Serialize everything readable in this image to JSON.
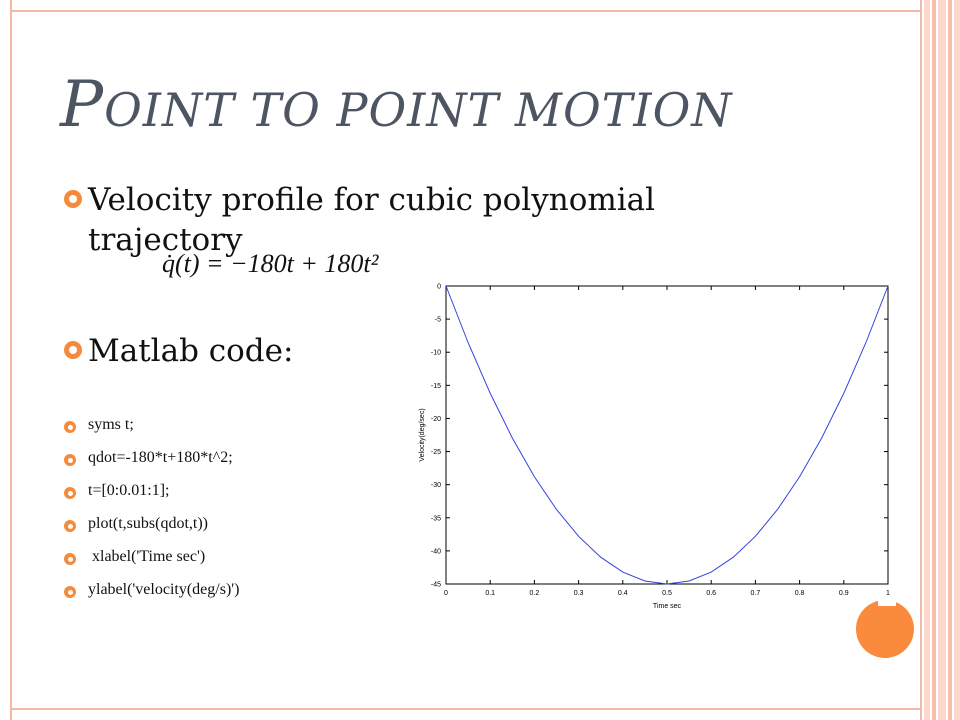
{
  "title": {
    "first_letter": "P",
    "rest": "oint to point motion"
  },
  "bullets": [
    {
      "text": "Velocity profile for cubic polynomial trajectory"
    },
    {
      "text": "Matlab code:"
    }
  ],
  "equation": {
    "lhs": "q̇(t) = ",
    "rhs": "−180t + 180t²"
  },
  "code_lines": [
    "syms t;",
    "qdot=-180*t+180*t^2;",
    "t=[0:0.01:1];",
    "plot(t,subs(qdot,t))",
    " xlabel('Time sec')",
    "ylabel('velocity(deg/s)')"
  ],
  "colors": {
    "accent": "#f58a3c",
    "title": "#4d5562",
    "frame": "#f4b8a8",
    "line": "#3344dd"
  },
  "chart_data": {
    "type": "line",
    "xlabel": "Time sec",
    "ylabel": "Velocity(deg/sec)",
    "xlim": [
      0,
      1
    ],
    "ylim": [
      -45,
      0
    ],
    "xticks": [
      0,
      0.1,
      0.2,
      0.3,
      0.4,
      0.5,
      0.6,
      0.7,
      0.8,
      0.9,
      1
    ],
    "yticks": [
      0,
      -5,
      -10,
      -15,
      -20,
      -25,
      -30,
      -35,
      -40,
      -45
    ],
    "series": [
      {
        "x": [
          0,
          0.05,
          0.1,
          0.15,
          0.2,
          0.25,
          0.3,
          0.35,
          0.4,
          0.45,
          0.5,
          0.55,
          0.6,
          0.65,
          0.7,
          0.75,
          0.8,
          0.85,
          0.9,
          0.95,
          1
        ],
        "y": [
          0,
          -8.55,
          -16.2,
          -22.95,
          -28.8,
          -33.75,
          -37.8,
          -40.95,
          -43.2,
          -44.55,
          -45,
          -44.55,
          -43.2,
          -40.95,
          -37.8,
          -33.75,
          -28.8,
          -22.95,
          -16.2,
          -8.55,
          0
        ]
      }
    ]
  }
}
